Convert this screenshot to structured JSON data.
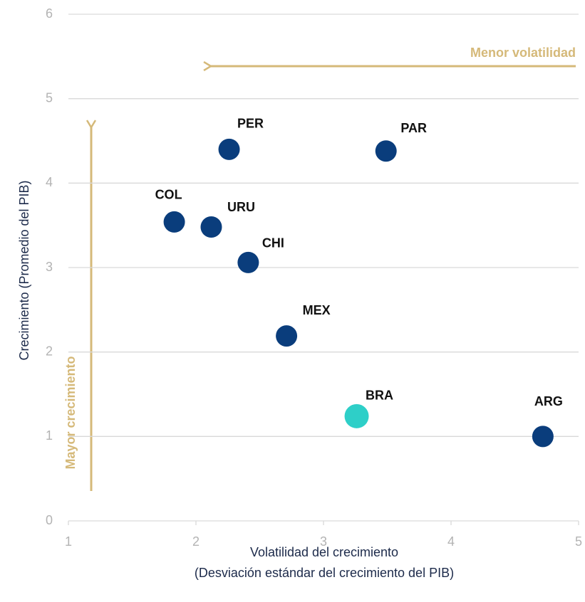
{
  "chart_data": {
    "type": "scatter",
    "x_label": [
      "Volatilidad del crecimiento",
      "(Desviación estándar del crecimiento del PIB)"
    ],
    "y_label": "Crecimiento (Promedio del PIB)",
    "annotations": [
      "Menor volatilidad",
      "Mayor crecimiento"
    ],
    "labels": [
      "PER",
      "PAR",
      "COL",
      "URU",
      "CHI",
      "MEX",
      "BRA",
      "ARG"
    ],
    "x": [
      2.26,
      3.49,
      1.83,
      2.12,
      2.41,
      2.71,
      3.26,
      4.72
    ],
    "values": [
      4.4,
      4.38,
      3.54,
      3.48,
      3.06,
      2.19,
      1.24,
      1.0
    ],
    "colors": [
      "#0a3d7c",
      "#0a3d7c",
      "#0a3d7c",
      "#0a3d7c",
      "#0a3d7c",
      "#0a3d7c",
      "#2ecfc8",
      "#0a3d7c"
    ],
    "xlim": [
      1,
      5
    ],
    "xticks": [
      1,
      2,
      3,
      4,
      5
    ],
    "ylim": [
      0,
      6
    ],
    "yticks": [
      0,
      1,
      2,
      3,
      4,
      5,
      6
    ],
    "grid": true
  }
}
